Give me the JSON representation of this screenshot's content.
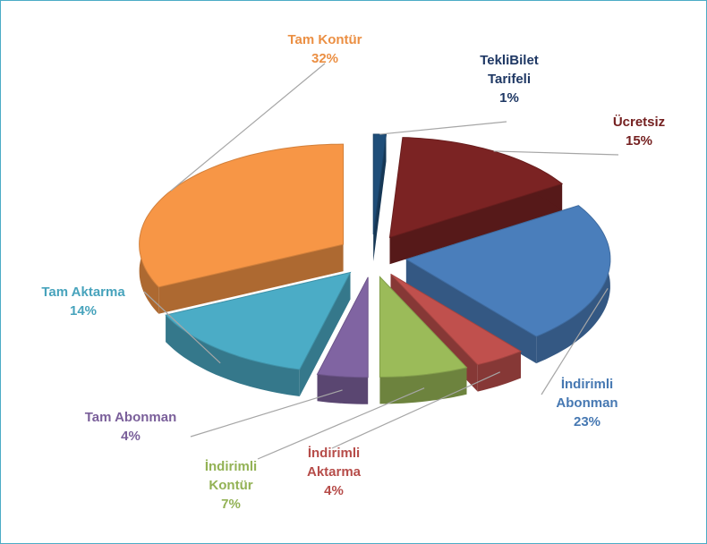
{
  "chart_data": {
    "type": "pie",
    "categories": [
      "TekliBilet Tarifeli",
      "Ücretsiz",
      "İndirimli Abonman",
      "İndirimli Aktarma",
      "İndirimli Kontür",
      "Tam Abonman",
      "Tam Aktarma",
      "Tam Kontür"
    ],
    "values": [
      1,
      15,
      23,
      4,
      7,
      4,
      14,
      32
    ],
    "value_labels": [
      "1%",
      "15%",
      "23%",
      "4%",
      "7%",
      "4%",
      "14%",
      "32%"
    ],
    "colors": [
      "#1f4e79",
      "#7b2323",
      "#4a7ebb",
      "#c0504d",
      "#9bbb59",
      "#8064a2",
      "#4bacc6",
      "#f79646"
    ]
  }
}
